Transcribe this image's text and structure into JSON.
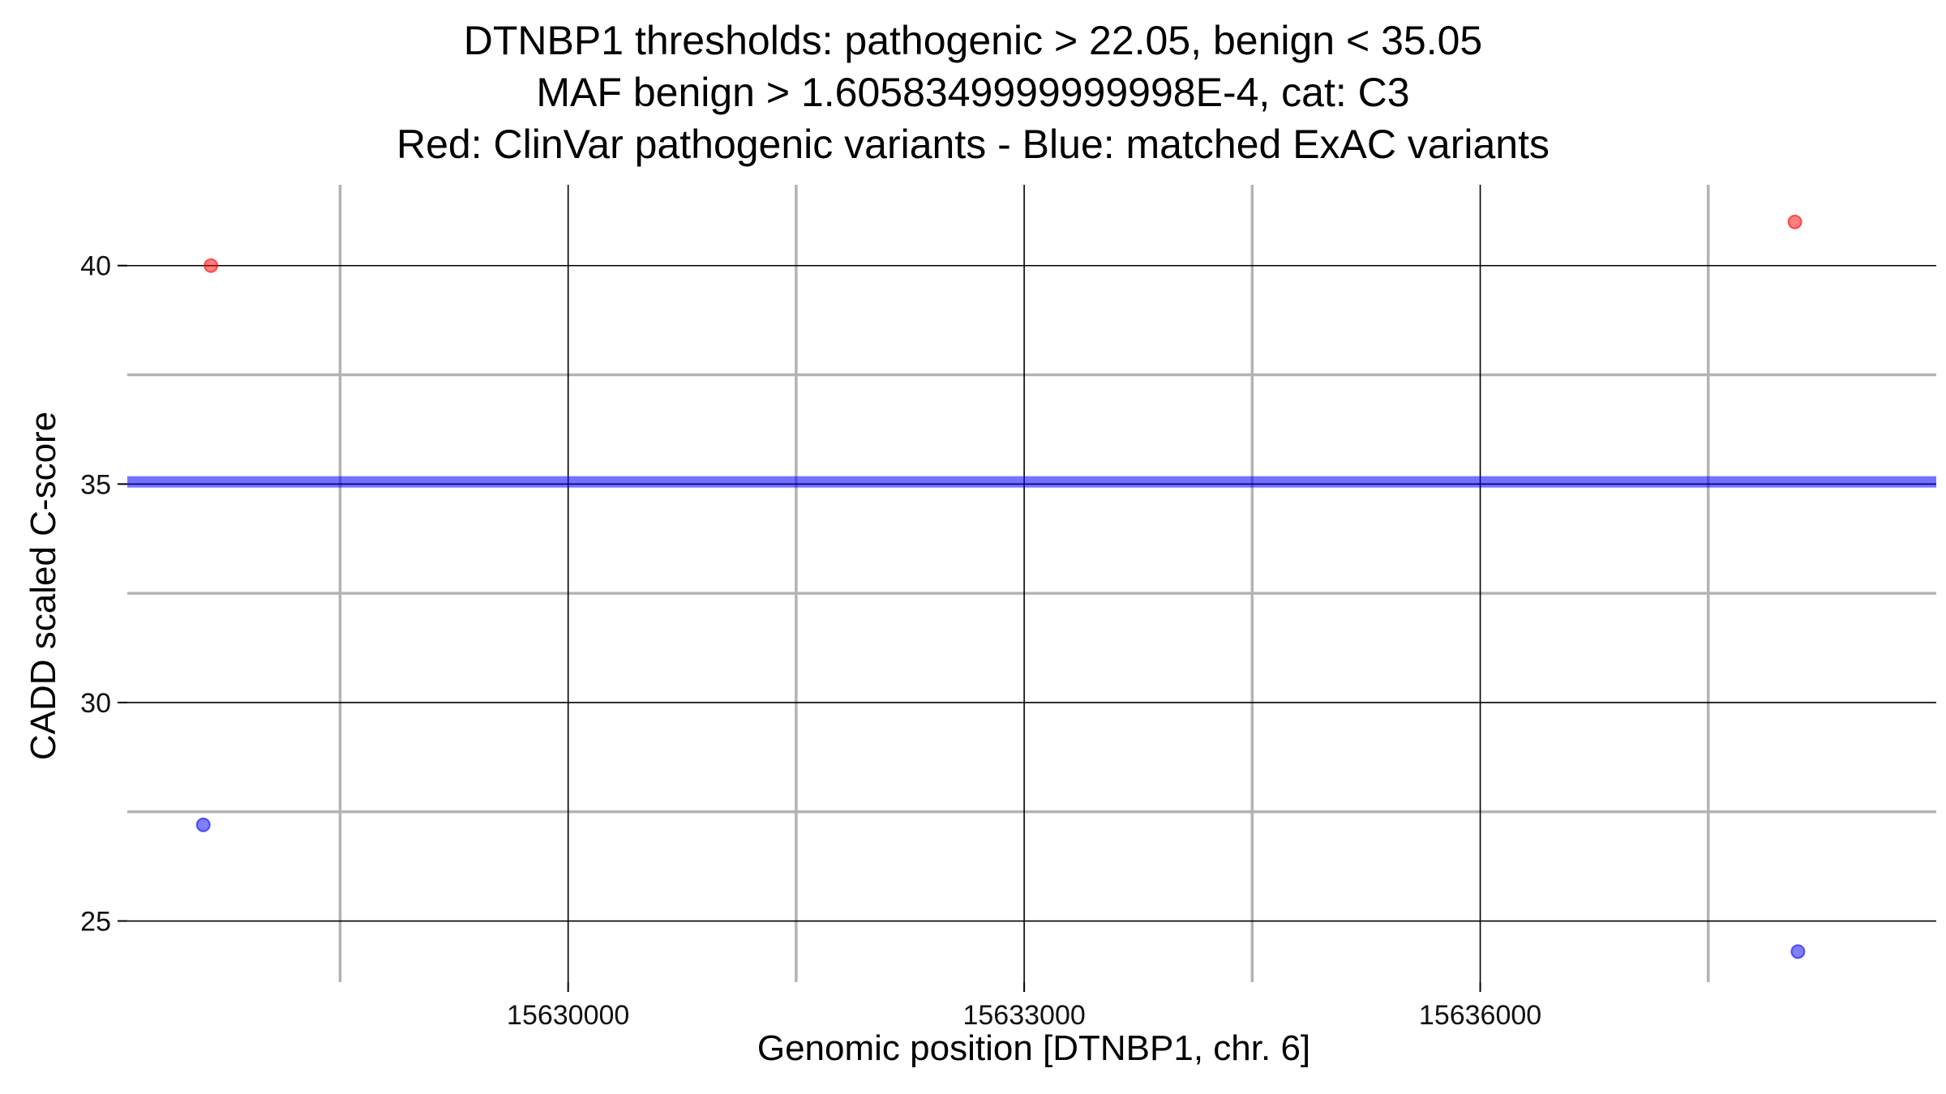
{
  "chart_data": {
    "type": "scatter",
    "title_lines": [
      "DTNBP1 thresholds: pathogenic > 22.05, benign < 35.05",
      "MAF benign > 1.6058349999999998E-4, cat: C3",
      "Red: ClinVar pathogenic variants - Blue: matched ExAC variants"
    ],
    "xlabel": "Genomic position [DTNBP1, chr. 6]",
    "ylabel": "CADD scaled C-score",
    "xlim": [
      15627100,
      15639000
    ],
    "ylim": [
      23.6,
      41.85
    ],
    "x_ticks": [
      15630000,
      15633000,
      15636000
    ],
    "x_minor_ticks": [
      15628500,
      15631500,
      15634500,
      15637500
    ],
    "y_ticks": [
      25,
      30,
      35,
      40
    ],
    "y_minor_ticks": [
      27.5,
      32.5,
      37.5
    ],
    "grid": true,
    "threshold_lines": [
      {
        "y": 35.05,
        "color": "#0000ff",
        "role": "benign threshold"
      },
      {
        "y": 22.05,
        "color": "#ff0000",
        "role": "pathogenic threshold"
      }
    ],
    "series": [
      {
        "color": "#ff0000",
        "points": [
          {
            "x": 15627650,
            "y": 40.0
          },
          {
            "x": 15638070,
            "y": 41.0
          }
        ]
      },
      {
        "color": "#0000ff",
        "points": [
          {
            "x": 15627600,
            "y": 27.2
          },
          {
            "x": 15638090,
            "y": 24.3
          }
        ]
      }
    ]
  }
}
